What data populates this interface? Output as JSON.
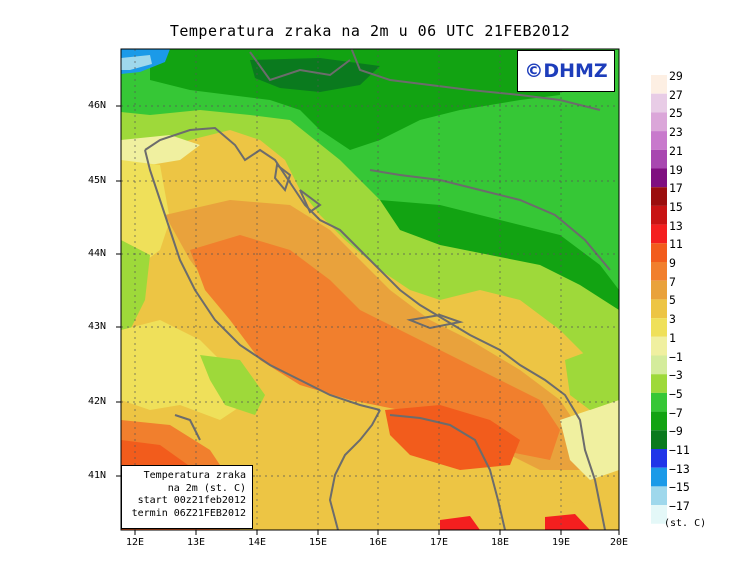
{
  "title": "Temperatura zraka na 2m u 06 UTC 21FEB2012",
  "logo": "©DHMZ",
  "info": {
    "line1": "Temperatura zraka",
    "line2": "na 2m (st. C)",
    "line3": "start 00z21feb2012",
    "line4": "termin 06Z21FEB2012"
  },
  "lat_ticks": [
    "46N",
    "45N",
    "44N",
    "43N",
    "42N",
    "41N"
  ],
  "lon_ticks": [
    "12E",
    "13E",
    "14E",
    "15E",
    "16E",
    "17E",
    "18E",
    "19E",
    "20E"
  ],
  "colorbar": {
    "labels": [
      "29",
      "27",
      "25",
      "23",
      "21",
      "19",
      "17",
      "15",
      "13",
      "11",
      "9",
      "7",
      "5",
      "3",
      "1",
      "−1",
      "−3",
      "−5",
      "−7",
      "−9",
      "−11",
      "−13",
      "−15",
      "−17"
    ],
    "colors": [
      "#fdefe3",
      "#e8cce6",
      "#dba6d9",
      "#c879cc",
      "#a847b0",
      "#7f0f80",
      "#9b0e0e",
      "#c81414",
      "#f41f1f",
      "#f25c1c",
      "#f17f2d",
      "#e9a23c",
      "#edc544",
      "#efe05a",
      "#f0f0a0",
      "#d4ec9c",
      "#9ed93a",
      "#36c736",
      "#12a312",
      "#0a7a1e",
      "#2035e8",
      "#1b9ae8",
      "#9fd8ec",
      "#e4f8f8"
    ],
    "unit": "(st. C)"
  }
}
